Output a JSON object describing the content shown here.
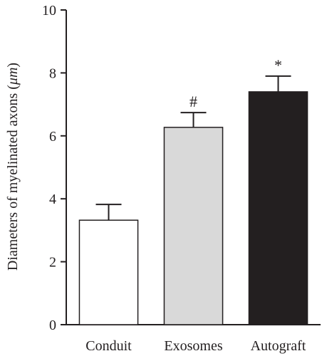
{
  "chart_data": {
    "type": "bar",
    "title": "",
    "xlabel": "",
    "ylabel_prefix": "Diameters of myelinated axons (",
    "ylabel_unit": "μm",
    "ylabel_suffix": ")",
    "ylim": [
      0,
      10
    ],
    "yticks": [
      0,
      2,
      4,
      6,
      8,
      10
    ],
    "categories": [
      "Conduit",
      "Exosomes",
      "Autograft"
    ],
    "values": [
      3.32,
      6.27,
      7.4
    ],
    "errors": [
      0.5,
      0.47,
      0.5
    ],
    "annotations": [
      "",
      "#",
      "*"
    ],
    "colors": [
      "#ffffff",
      "#d9d9d9",
      "#231f20"
    ],
    "edge_color": "#231f20",
    "grid": false,
    "legend": "none"
  }
}
